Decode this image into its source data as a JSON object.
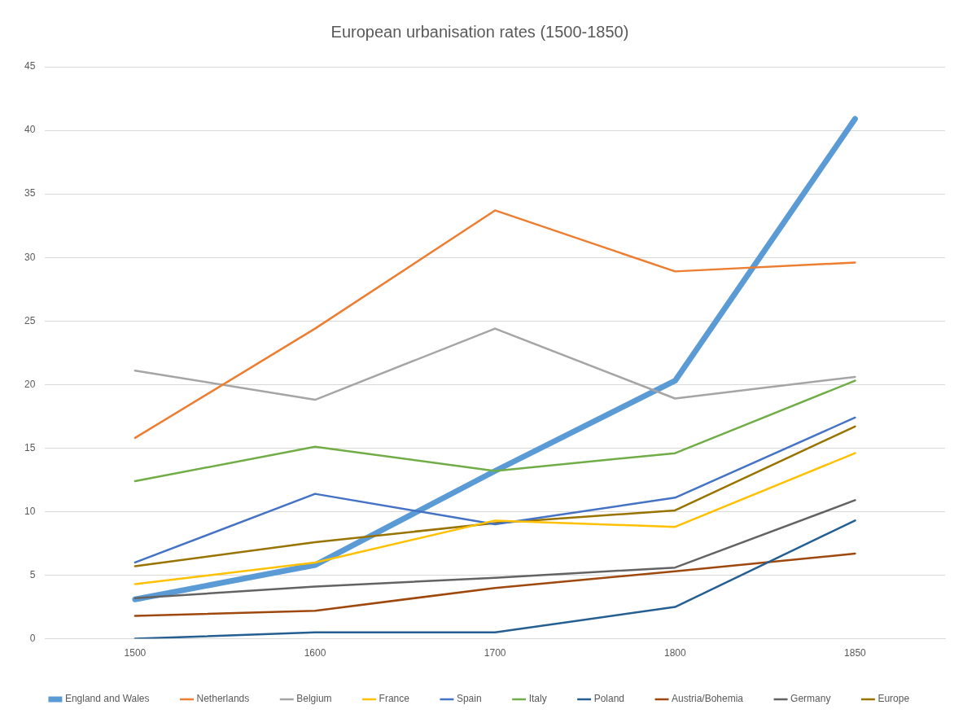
{
  "chart_data": {
    "type": "line",
    "title": "European urbanisation rates (1500-1850)",
    "categories": [
      "1500",
      "1600",
      "1700",
      "1800",
      "1850"
    ],
    "ylim": [
      0,
      45
    ],
    "yticks": [
      0,
      5,
      10,
      15,
      20,
      25,
      30,
      35,
      40,
      45
    ],
    "grid": "y",
    "legend": "bottom",
    "marker": "none",
    "line_style": "solid",
    "series": [
      {
        "name": "England and Wales",
        "color": "#5b9bd5",
        "values": [
          3.1,
          5.8,
          13.2,
          20.3,
          40.9
        ]
      },
      {
        "name": "Netherlands",
        "color": "#ed7d31",
        "values": [
          15.8,
          24.4,
          33.7,
          28.9,
          29.6
        ]
      },
      {
        "name": "Belgium",
        "color": "#a5a5a5",
        "values": [
          21.1,
          18.8,
          24.4,
          18.9,
          20.6
        ]
      },
      {
        "name": "France",
        "color": "#ffc000",
        "values": [
          4.3,
          6.0,
          9.3,
          8.8,
          14.6
        ]
      },
      {
        "name": "Spain",
        "color": "#4472c4",
        "values": [
          6.0,
          11.4,
          9.0,
          11.1,
          17.4
        ]
      },
      {
        "name": "Italy",
        "color": "#70ad47",
        "values": [
          12.4,
          15.1,
          13.2,
          14.6,
          20.3
        ]
      },
      {
        "name": "Poland",
        "color": "#255e91",
        "values": [
          0,
          0.5,
          0.5,
          2.5,
          9.3
        ]
      },
      {
        "name": "Austria/Bohemia",
        "color": "#9e480e",
        "values": [
          1.8,
          2.2,
          4.0,
          5.3,
          6.7
        ]
      },
      {
        "name": "Germany",
        "color": "#636363",
        "values": [
          3.2,
          4.1,
          4.8,
          5.6,
          10.9
        ]
      },
      {
        "name": "Europe",
        "color": "#997300",
        "values": [
          5.7,
          7.6,
          9.1,
          10.1,
          16.7
        ]
      }
    ]
  }
}
